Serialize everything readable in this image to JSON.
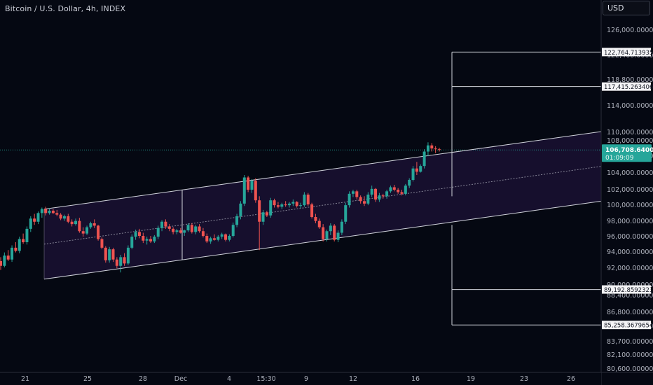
{
  "header": {
    "title": "Bitcoin / U.S. Dollar, 4h, INDEX",
    "currency": "USD"
  },
  "colors": {
    "background": "#050812",
    "up": "#26a69a",
    "down": "#ef5350",
    "channel_fill": "#1a1032",
    "line": "#d1d4dc",
    "price_tag": "#26a69a"
  },
  "chart_data": {
    "type": "candlestick",
    "title": "Bitcoin / U.S. Dollar, 4h, INDEX",
    "price_axis": {
      "scale": "piecewise",
      "ticks": [
        "126,000.00000000",
        "122,400.00000000",
        "118,800.00000000",
        "114,000.00000000",
        "110,000.00000000",
        "108,000.00000000",
        "106,000.00000000",
        "104,000.00000000",
        "102,000.00000000",
        "100,000.00000000",
        "98,000.00000000",
        "96,000.00000000",
        "94,000.00000000",
        "92,000.00000000",
        "90,000.00000000",
        "88,400.00000000",
        "86,800.00000000",
        "85,200.00000000",
        "83,700.00000000",
        "82,100.00000000",
        "80,600.00000000"
      ]
    },
    "time_axis": {
      "ticks": [
        "21",
        "25",
        "28",
        "Dec",
        "4",
        "15:30",
        "9",
        "12",
        "16",
        "19",
        "23",
        "26"
      ]
    },
    "current_price": {
      "value": "106,708.64000000",
      "countdown": "01:09:09"
    },
    "level_labels": [
      "122,764.71393544",
      "117,415.26340652",
      "89,192.85923230",
      "85,258.36796549"
    ],
    "channel": {
      "start_date": "Nov 22",
      "end_date": "Dec 19",
      "upper_start": 99400,
      "upper_end": 110000,
      "lower_start": 90600,
      "lower_end": 100400
    },
    "candles": [
      [
        92800,
        93300,
        91700,
        92200
      ],
      [
        92200,
        93900,
        92000,
        93500
      ],
      [
        93500,
        94200,
        92800,
        93000
      ],
      [
        93000,
        94800,
        92700,
        94500
      ],
      [
        94500,
        95200,
        93900,
        94100
      ],
      [
        94100,
        95900,
        93800,
        95600
      ],
      [
        95600,
        96300,
        95000,
        95200
      ],
      [
        95200,
        97200,
        94900,
        96900
      ],
      [
        96900,
        98500,
        96500,
        98200
      ],
      [
        98200,
        98800,
        97400,
        97800
      ],
      [
        97800,
        99100,
        97500,
        98900
      ],
      [
        98900,
        99600,
        98300,
        99400
      ],
      [
        99400,
        99700,
        98600,
        98900
      ],
      [
        98900,
        99500,
        98700,
        99200
      ],
      [
        99200,
        99400,
        98800,
        98900
      ],
      [
        98900,
        99300,
        98500,
        98700
      ],
      [
        98700,
        98900,
        98000,
        98200
      ],
      [
        98200,
        98700,
        97900,
        98500
      ],
      [
        98500,
        98800,
        97600,
        97800
      ],
      [
        97800,
        98100,
        97200,
        97500
      ],
      [
        97500,
        98200,
        97300,
        97900
      ],
      [
        97900,
        98300,
        96400,
        96600
      ],
      [
        96600,
        97100,
        95900,
        96300
      ],
      [
        96300,
        97300,
        96100,
        97100
      ],
      [
        97100,
        97800,
        96900,
        97600
      ],
      [
        97600,
        98100,
        97000,
        97300
      ],
      [
        97300,
        97400,
        95400,
        95600
      ],
      [
        95600,
        95800,
        94300,
        94500
      ],
      [
        94500,
        94700,
        92600,
        92900
      ],
      [
        92900,
        94600,
        92600,
        94300
      ],
      [
        94300,
        94500,
        92700,
        93000
      ],
      [
        93000,
        93300,
        91900,
        92200
      ],
      [
        92200,
        93600,
        91400,
        93300
      ],
      [
        93300,
        93800,
        92200,
        92500
      ],
      [
        92500,
        94800,
        92300,
        94500
      ],
      [
        94500,
        96200,
        94300,
        95900
      ],
      [
        95900,
        96800,
        95500,
        96500
      ],
      [
        96500,
        96900,
        95700,
        96000
      ],
      [
        96000,
        96400,
        95100,
        95400
      ],
      [
        95400,
        95900,
        94900,
        95600
      ],
      [
        95600,
        96000,
        95100,
        95300
      ],
      [
        95300,
        96100,
        95100,
        95900
      ],
      [
        95900,
        97300,
        95600,
        97000
      ],
      [
        97000,
        98000,
        96600,
        97800
      ],
      [
        97800,
        98100,
        96900,
        97200
      ],
      [
        97200,
        97500,
        96600,
        96900
      ],
      [
        96900,
        97100,
        96200,
        96500
      ],
      [
        96500,
        96900,
        96200,
        96700
      ],
      [
        96700,
        97000,
        96300,
        96400
      ],
      [
        96400,
        96800,
        96000,
        96700
      ],
      [
        96700,
        97600,
        96500,
        97400
      ],
      [
        97400,
        97600,
        96300,
        96500
      ],
      [
        96500,
        97400,
        96200,
        97200
      ],
      [
        97200,
        97500,
        96400,
        96600
      ],
      [
        96600,
        97000,
        95800,
        96000
      ],
      [
        96000,
        96300,
        95100,
        95300
      ],
      [
        95300,
        95900,
        95000,
        95700
      ],
      [
        95700,
        96200,
        95400,
        95500
      ],
      [
        95500,
        96100,
        95300,
        95900
      ],
      [
        95900,
        96400,
        95600,
        96200
      ],
      [
        96200,
        96300,
        95300,
        95500
      ],
      [
        95500,
        96200,
        95300,
        96000
      ],
      [
        96000,
        97700,
        95800,
        97400
      ],
      [
        97400,
        98800,
        97100,
        98500
      ],
      [
        98500,
        100400,
        98100,
        100100
      ],
      [
        100100,
        103600,
        99800,
        103300
      ],
      [
        103300,
        103500,
        101500,
        101800
      ],
      [
        101800,
        103100,
        101400,
        102900
      ],
      [
        102900,
        103200,
        100200,
        100500
      ],
      [
        100500,
        101000,
        94200,
        97800
      ],
      [
        97800,
        99300,
        97400,
        99000
      ],
      [
        99000,
        99200,
        98400,
        98600
      ],
      [
        98600,
        100800,
        98300,
        100500
      ],
      [
        100500,
        100700,
        99600,
        99900
      ],
      [
        99900,
        100300,
        99500,
        99700
      ],
      [
        99700,
        100200,
        99400,
        100000
      ],
      [
        100000,
        100400,
        99700,
        99900
      ],
      [
        99900,
        100300,
        99600,
        100100
      ],
      [
        100100,
        100600,
        99800,
        100300
      ],
      [
        100300,
        100400,
        99600,
        99800
      ],
      [
        99800,
        100200,
        99500,
        99900
      ],
      [
        99900,
        101500,
        99700,
        101200
      ],
      [
        101200,
        101400,
        99800,
        100000
      ],
      [
        100000,
        100200,
        98200,
        98400
      ],
      [
        98400,
        98800,
        97600,
        97900
      ],
      [
        97900,
        98200,
        96900,
        97100
      ],
      [
        97100,
        97500,
        95300,
        95600
      ],
      [
        95600,
        96800,
        95300,
        96600
      ],
      [
        96600,
        97600,
        96100,
        97300
      ],
      [
        97300,
        97500,
        95300,
        95500
      ],
      [
        95500,
        96700,
        95200,
        96400
      ],
      [
        96400,
        98100,
        96100,
        97800
      ],
      [
        97800,
        100200,
        97500,
        99900
      ],
      [
        99900,
        101600,
        99600,
        101300
      ],
      [
        101300,
        101800,
        100900,
        101600
      ],
      [
        101600,
        101800,
        100600,
        100900
      ],
      [
        100900,
        101100,
        100100,
        100400
      ],
      [
        100400,
        101000,
        99800,
        100100
      ],
      [
        100100,
        101500,
        99900,
        101200
      ],
      [
        101200,
        102300,
        100900,
        101900
      ],
      [
        101900,
        102000,
        100300,
        100600
      ],
      [
        100600,
        101400,
        100300,
        101100
      ],
      [
        101100,
        101300,
        100700,
        101000
      ],
      [
        101000,
        101800,
        100700,
        101600
      ],
      [
        101600,
        102300,
        101400,
        102100
      ],
      [
        102100,
        102400,
        101600,
        101800
      ],
      [
        101800,
        102000,
        101300,
        101500
      ],
      [
        101500,
        101800,
        101100,
        101300
      ],
      [
        101300,
        102500,
        101100,
        102300
      ],
      [
        102300,
        103200,
        102000,
        103000
      ],
      [
        103000,
        104700,
        102800,
        104400
      ],
      [
        104400,
        105200,
        103600,
        104000
      ],
      [
        104000,
        104900,
        103900,
        104700
      ],
      [
        104700,
        106800,
        104400,
        106500
      ],
      [
        106500,
        107700,
        105900,
        107300
      ],
      [
        107300,
        107600,
        106500,
        106900
      ],
      [
        106900,
        107200,
        106300,
        106800
      ],
      [
        106800,
        107000,
        106500,
        106709
      ]
    ]
  }
}
